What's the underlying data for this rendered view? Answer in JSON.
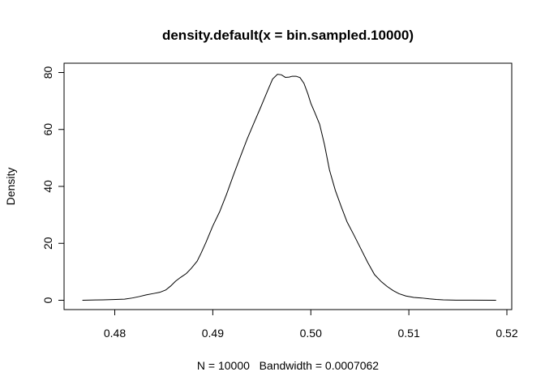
{
  "chart_data": {
    "type": "line",
    "title": "density.default(x = bin.sampled.10000)",
    "xlabel": "N = 10000   Bandwidth = 0.0007062",
    "ylabel": "Density",
    "xlim": [
      0.4765,
      0.52
    ],
    "ylim": [
      0,
      80
    ],
    "x_ticks": [
      "0.48",
      "0.49",
      "0.50",
      "0.51",
      "0.52"
    ],
    "y_ticks": [
      "0",
      "20",
      "40",
      "60",
      "80"
    ],
    "grid": false,
    "series": [
      {
        "x": [
          0.4767,
          0.478,
          0.4795,
          0.481,
          0.4818,
          0.4825,
          0.4832,
          0.484,
          0.4846,
          0.4852,
          0.4857,
          0.4862,
          0.4867,
          0.4873,
          0.4878,
          0.4884,
          0.4888,
          0.4893,
          0.49,
          0.4907,
          0.4914,
          0.4921,
          0.4928,
          0.4935,
          0.4942,
          0.4949,
          0.4956,
          0.4961,
          0.4966,
          0.497,
          0.4974,
          0.4978,
          0.4981,
          0.4985,
          0.4989,
          0.4993,
          0.4997,
          0.5,
          0.5004,
          0.5009,
          0.5014,
          0.5019,
          0.5025,
          0.5031,
          0.5037,
          0.5044,
          0.5051,
          0.5058,
          0.5065,
          0.5072,
          0.5078,
          0.5084,
          0.509,
          0.5097,
          0.5105,
          0.5113,
          0.5121,
          0.5128,
          0.5135,
          0.5148,
          0.5165,
          0.5189
        ],
        "y": [
          0.0,
          0.1,
          0.2,
          0.4,
          0.8,
          1.3,
          1.9,
          2.4,
          2.8,
          3.6,
          5.0,
          6.7,
          8.0,
          9.4,
          11.2,
          13.7,
          16.5,
          20.3,
          26.1,
          31.1,
          37.2,
          43.9,
          50.3,
          56.6,
          62.3,
          67.9,
          73.7,
          77.7,
          79.4,
          79.2,
          78.3,
          78.4,
          78.7,
          78.7,
          78.2,
          76.2,
          72.5,
          69.2,
          66.0,
          61.8,
          54.6,
          45.8,
          38.6,
          32.9,
          27.5,
          22.9,
          18.1,
          13.3,
          9.0,
          6.5,
          4.8,
          3.4,
          2.3,
          1.5,
          1.0,
          0.8,
          0.5,
          0.3,
          0.15,
          0.05,
          0.02,
          0.0
        ]
      }
    ]
  }
}
